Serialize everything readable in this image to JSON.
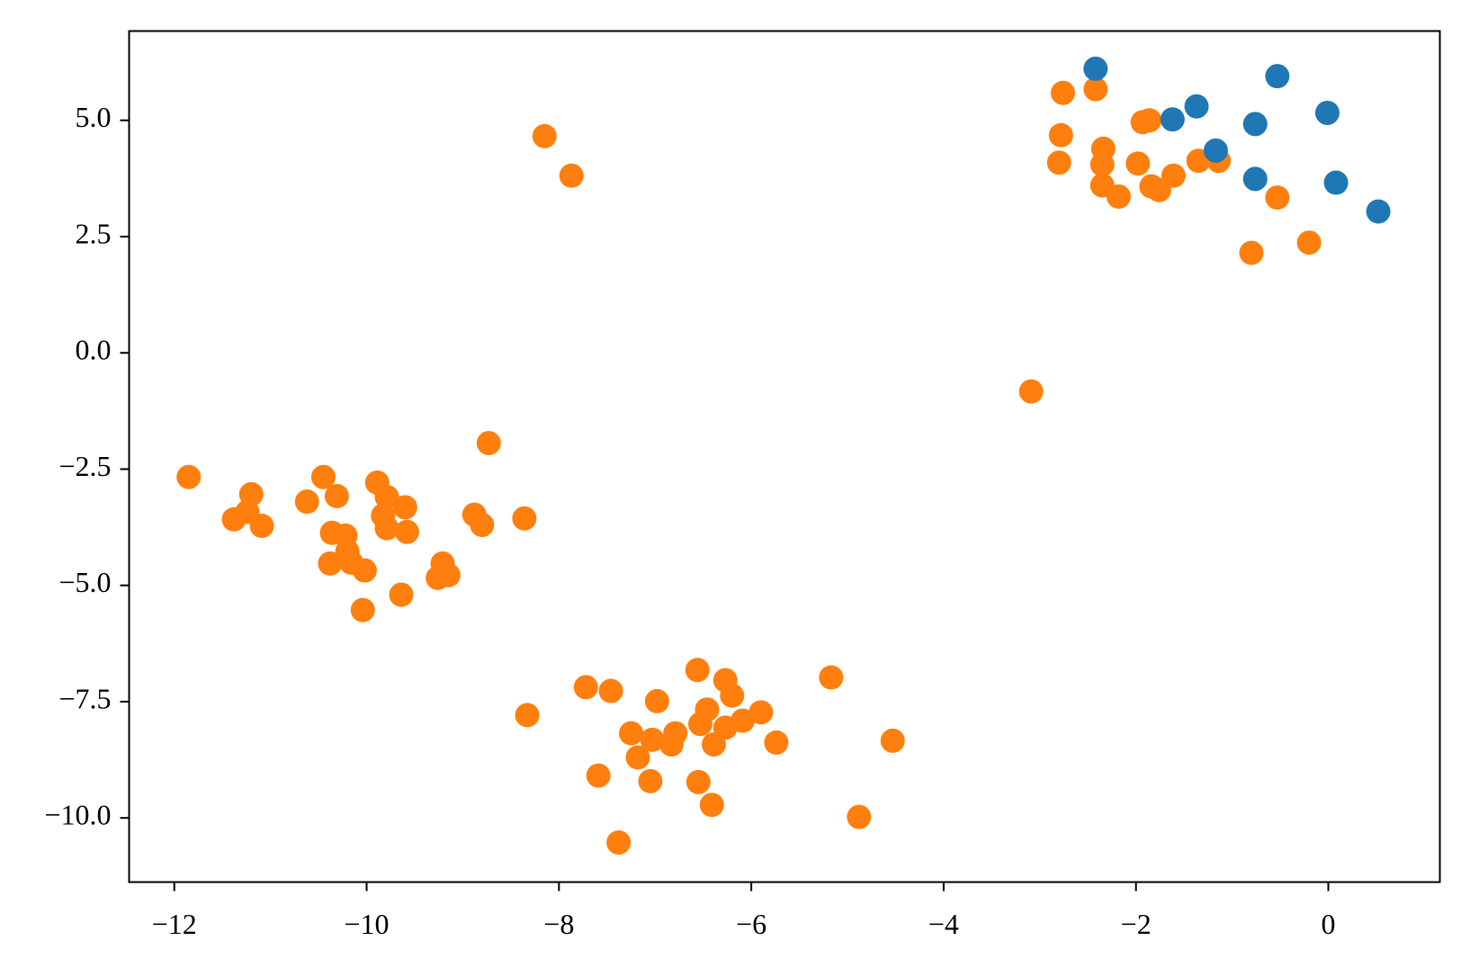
{
  "chart_data": {
    "type": "scatter",
    "xlim": [
      -12.47,
      1.16
    ],
    "ylim": [
      -11.38,
      6.92
    ],
    "xticks": [
      {
        "value": -12,
        "label": "−12"
      },
      {
        "value": -10,
        "label": "−10"
      },
      {
        "value": -8,
        "label": "−8"
      },
      {
        "value": -6,
        "label": "−6"
      },
      {
        "value": -4,
        "label": "−4"
      },
      {
        "value": -2,
        "label": "−2"
      },
      0
    ],
    "yticks": [
      {
        "value": 5,
        "label": "5.0"
      },
      {
        "value": 2.5,
        "label": "2.5"
      },
      {
        "value": 0,
        "label": "0.0"
      },
      {
        "value": -2.5,
        "label": "−2.5"
      },
      {
        "value": -5,
        "label": "−5.0"
      },
      {
        "value": -7.5,
        "label": "−7.5"
      },
      {
        "value": -10,
        "label": "−10.0"
      }
    ],
    "series": [
      {
        "color": "#ff7f0e",
        "x": [
          -2.76,
          -2.42,
          -2.78,
          -2.8,
          -2.34,
          -2.35,
          -2.35,
          -2.18,
          -1.93,
          -1.86,
          -1.98,
          -1.84,
          -1.76,
          -1.61,
          -1.35,
          -1.14,
          -0.53,
          -0.8,
          -0.2,
          -8.15,
          -7.87,
          -3.09,
          -8.73,
          -11.85,
          -11.2,
          -11.38,
          -11.24,
          -11.09,
          -10.62,
          -10.45,
          -10.31,
          -9.89,
          -9.79,
          -9.6,
          -9.83,
          -9.79,
          -9.58,
          -10.36,
          -10.22,
          -10.2,
          -10.38,
          -10.16,
          -10.02,
          -9.64,
          -10.04,
          -9.21,
          -9.15,
          -9.26,
          -8.88,
          -8.8,
          -8.36,
          -8.33,
          -7.72,
          -7.46,
          -6.56,
          -6.98,
          -6.27,
          -6.2,
          -6.46,
          -5.9,
          -6.09,
          -6.27,
          -6.53,
          -7.25,
          -7.03,
          -6.79,
          -6.83,
          -6.39,
          -7.18,
          -5.74,
          -5.17,
          -4.53,
          -7.59,
          -7.05,
          -6.55,
          -6.41,
          -4.88,
          -7.38
        ],
        "values": [
          5.59,
          5.67,
          4.68,
          4.09,
          4.39,
          4.05,
          3.6,
          3.36,
          4.96,
          5.0,
          4.07,
          3.58,
          3.5,
          3.81,
          4.13,
          4.13,
          3.34,
          2.15,
          2.37,
          4.66,
          3.81,
          -0.83,
          -1.94,
          -2.67,
          -3.04,
          -3.58,
          -3.42,
          -3.72,
          -3.2,
          -2.67,
          -3.08,
          -2.79,
          -3.1,
          -3.32,
          -3.5,
          -3.77,
          -3.85,
          -3.87,
          -3.93,
          -4.27,
          -4.53,
          -4.51,
          -4.68,
          -5.2,
          -5.53,
          -4.53,
          -4.78,
          -4.84,
          -3.48,
          -3.7,
          -3.56,
          -7.79,
          -7.19,
          -7.27,
          -6.82,
          -7.49,
          -7.04,
          -7.37,
          -7.67,
          -7.73,
          -7.91,
          -8.06,
          -7.98,
          -8.18,
          -8.32,
          -8.18,
          -8.42,
          -8.42,
          -8.7,
          -8.38,
          -6.98,
          -8.34,
          -9.09,
          -9.21,
          -9.23,
          -9.72,
          -9.98,
          -10.53
        ]
      },
      {
        "color": "#1f77b4",
        "x": [
          -2.42,
          -1.62,
          -1.37,
          -0.53,
          -0.76,
          -0.01,
          -1.17,
          -0.76,
          0.08,
          0.52
        ],
        "values": [
          6.11,
          5.02,
          5.3,
          5.95,
          4.92,
          5.16,
          4.35,
          3.74,
          3.66,
          3.04
        ]
      }
    ]
  }
}
